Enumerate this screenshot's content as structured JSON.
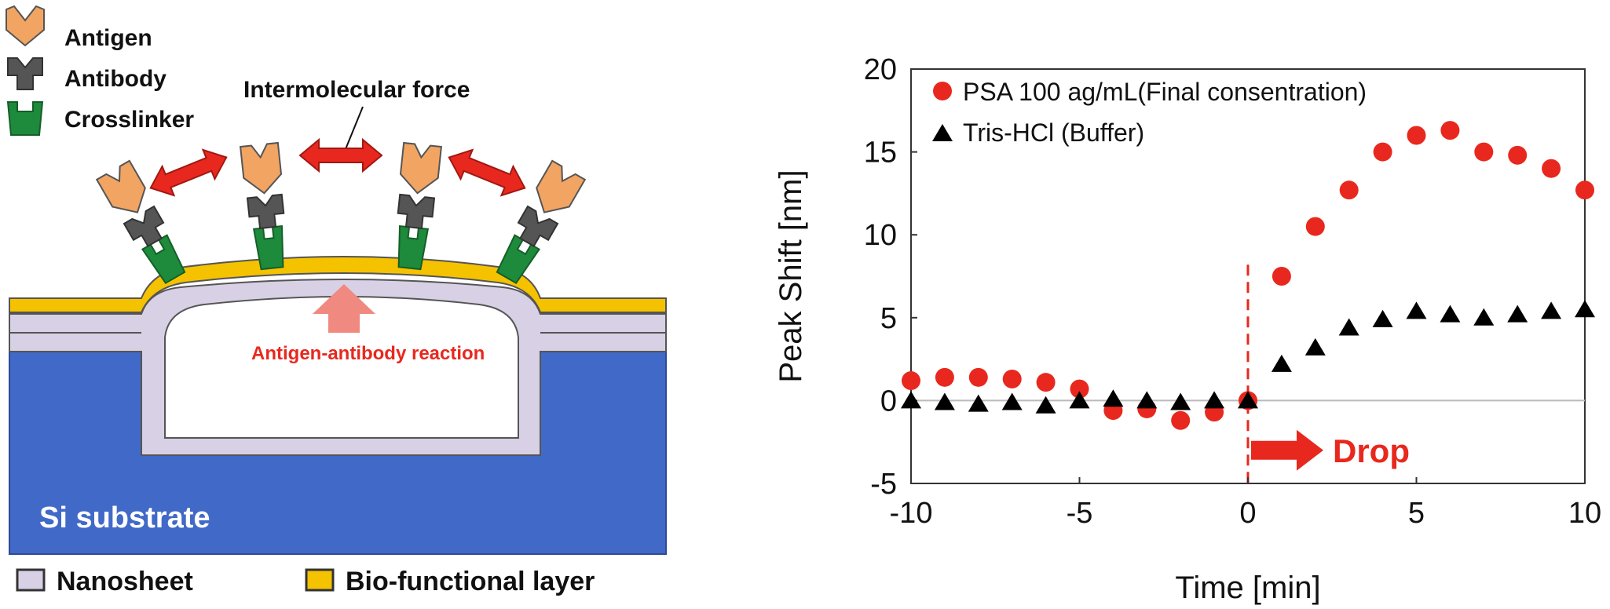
{
  "diagram": {
    "legend_top": {
      "antigen": "Antigen",
      "antibody": "Antibody",
      "crosslinker": "Crosslinker"
    },
    "intermolecular_force": "Intermolecular force",
    "reaction_label": "Antigen-antibody reaction",
    "substrate_label": "Si substrate",
    "legend_bottom": {
      "nanosheet": "Nanosheet",
      "bio_layer": "Bio-functional layer"
    },
    "colors": {
      "antigen": "#f2a463",
      "antibody": "#555555",
      "crosslinker": "#1e8a3c",
      "substrate": "#4169c8",
      "nanosheet": "#d8d0e4",
      "bio_layer": "#f5c200",
      "arrow": "#e8281e",
      "reaction_text": "#e8281e"
    }
  },
  "chart_data": {
    "type": "scatter",
    "xlabel": "Time [min]",
    "ylabel": "Peak Shift [nm]",
    "xlim": [
      -10,
      10
    ],
    "ylim": [
      -5,
      20
    ],
    "xticks": [
      -10,
      -5,
      0,
      5,
      10
    ],
    "yticks": [
      -5,
      0,
      5,
      10,
      15,
      20
    ],
    "legend_position": "top-left",
    "annotation": "Drop",
    "series": [
      {
        "name": "PSA 100 ag/mL(Final consentration)",
        "marker": "circle",
        "color": "#e8281e",
        "x": [
          -10,
          -9,
          -8,
          -7,
          -6,
          -5,
          -4,
          -3,
          -2,
          -1,
          0,
          1,
          2,
          3,
          4,
          5,
          6,
          7,
          8,
          9,
          10
        ],
        "y": [
          1.2,
          1.4,
          1.4,
          1.3,
          1.1,
          0.7,
          -0.6,
          -0.5,
          -1.2,
          -0.7,
          0.0,
          7.5,
          10.5,
          12.7,
          15.0,
          16.0,
          16.3,
          15.0,
          14.8,
          14.0,
          12.7
        ]
      },
      {
        "name": "Tris-HCl (Buffer)",
        "marker": "triangle",
        "color": "#000000",
        "x": [
          -10,
          -9,
          -8,
          -7,
          -6,
          -5,
          -4,
          -3,
          -2,
          -1,
          0,
          1,
          2,
          3,
          4,
          5,
          6,
          7,
          8,
          9,
          10
        ],
        "y": [
          0.0,
          -0.1,
          -0.2,
          -0.1,
          -0.3,
          0.0,
          0.1,
          0.0,
          -0.1,
          0.0,
          0.0,
          2.2,
          3.2,
          4.4,
          4.9,
          5.4,
          5.2,
          5.0,
          5.2,
          5.4,
          5.5
        ]
      }
    ]
  }
}
